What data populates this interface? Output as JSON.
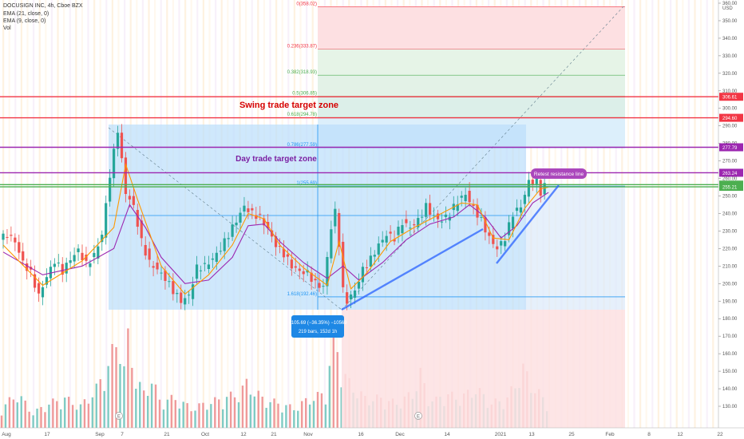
{
  "header": {
    "symbol_line": "DOCUSIGN INC, 4h, Cboe BZX",
    "ema21": "EMA (21, close, 0)",
    "ema9": "EMA (9, close, 0)",
    "vol": "Vol"
  },
  "colors": {
    "up": "#26a69a",
    "down": "#ef5350",
    "ema21": "#9c27b0",
    "ema9": "#ff9800",
    "fib_red": "#f23645",
    "fib_green": "#4caf50",
    "box_blue": "#2196f3",
    "trend_line": "#2962ff",
    "purple_line": "#9c27b0"
  },
  "chart_data": {
    "type": "candlestick",
    "title": "DOCUSIGN INC, 4h, Cboe BZX",
    "ylim": [
      125,
      360
    ],
    "y_ticks": [
      130,
      140,
      150,
      160,
      170,
      180,
      190,
      200,
      210,
      220,
      230,
      240,
      250,
      260,
      270,
      280,
      290,
      300,
      310,
      320,
      330,
      340,
      350,
      360
    ],
    "x_labels": [
      "Aug",
      "17",
      "Sep",
      "7",
      "21",
      "Oct",
      "12",
      "21",
      "Nov",
      "16",
      "Dec",
      "14",
      "2021",
      "13",
      "25",
      "Feb",
      "8",
      "12",
      "22"
    ],
    "currency": "USD",
    "price_path": [
      [
        0,
        225
      ],
      [
        2,
        228
      ],
      [
        4,
        224
      ],
      [
        6,
        212
      ],
      [
        8,
        206
      ],
      [
        10,
        193
      ],
      [
        12,
        204
      ],
      [
        14,
        213
      ],
      [
        16,
        207
      ],
      [
        18,
        214
      ],
      [
        20,
        219
      ],
      [
        22,
        211
      ],
      [
        24,
        216
      ],
      [
        26,
        228
      ],
      [
        28,
        262
      ],
      [
        30,
        288
      ],
      [
        32,
        252
      ],
      [
        34,
        244
      ],
      [
        36,
        224
      ],
      [
        38,
        212
      ],
      [
        40,
        208
      ],
      [
        42,
        203
      ],
      [
        44,
        196
      ],
      [
        46,
        190
      ],
      [
        48,
        193
      ],
      [
        50,
        209
      ],
      [
        52,
        210
      ],
      [
        54,
        214
      ],
      [
        56,
        220
      ],
      [
        58,
        228
      ],
      [
        60,
        236
      ],
      [
        62,
        244
      ],
      [
        64,
        240
      ],
      [
        66,
        238
      ],
      [
        68,
        231
      ],
      [
        70,
        222
      ],
      [
        72,
        217
      ],
      [
        74,
        210
      ],
      [
        76,
        207
      ],
      [
        78,
        206
      ],
      [
        80,
        200
      ],
      [
        82,
        198
      ],
      [
        84,
        232
      ],
      [
        85,
        241
      ],
      [
        86,
        223
      ],
      [
        87,
        196
      ],
      [
        88,
        190
      ],
      [
        90,
        196
      ],
      [
        92,
        208
      ],
      [
        94,
        214
      ],
      [
        96,
        222
      ],
      [
        98,
        228
      ],
      [
        100,
        226
      ],
      [
        102,
        235
      ],
      [
        104,
        232
      ],
      [
        106,
        236
      ],
      [
        108,
        244
      ],
      [
        110,
        238
      ],
      [
        112,
        236
      ],
      [
        114,
        240
      ],
      [
        116,
        247
      ],
      [
        118,
        251
      ],
      [
        120,
        243
      ],
      [
        122,
        236
      ],
      [
        124,
        226
      ],
      [
        126,
        220
      ],
      [
        128,
        226
      ],
      [
        130,
        240
      ],
      [
        132,
        244
      ],
      [
        134,
        258
      ],
      [
        136,
        258
      ],
      [
        137,
        252
      ],
      [
        138,
        256
      ]
    ],
    "ema21_path": [
      [
        0,
        218
      ],
      [
        10,
        205
      ],
      [
        20,
        210
      ],
      [
        28,
        220
      ],
      [
        32,
        245
      ],
      [
        36,
        232
      ],
      [
        40,
        215
      ],
      [
        46,
        200
      ],
      [
        52,
        202
      ],
      [
        58,
        215
      ],
      [
        62,
        233
      ],
      [
        66,
        234
      ],
      [
        70,
        224
      ],
      [
        76,
        212
      ],
      [
        82,
        203
      ],
      [
        86,
        210
      ],
      [
        90,
        202
      ],
      [
        96,
        212
      ],
      [
        102,
        225
      ],
      [
        108,
        234
      ],
      [
        114,
        238
      ],
      [
        118,
        245
      ],
      [
        122,
        238
      ],
      [
        126,
        226
      ],
      [
        130,
        233
      ],
      [
        134,
        246
      ],
      [
        138,
        252
      ]
    ],
    "ema9_path": [
      [
        0,
        222
      ],
      [
        10,
        199
      ],
      [
        20,
        213
      ],
      [
        28,
        232
      ],
      [
        31,
        268
      ],
      [
        34,
        248
      ],
      [
        40,
        210
      ],
      [
        46,
        194
      ],
      [
        52,
        205
      ],
      [
        58,
        222
      ],
      [
        62,
        240
      ],
      [
        66,
        237
      ],
      [
        70,
        222
      ],
      [
        76,
        209
      ],
      [
        82,
        199
      ],
      [
        85,
        224
      ],
      [
        88,
        197
      ],
      [
        92,
        206
      ],
      [
        98,
        224
      ],
      [
        104,
        232
      ],
      [
        110,
        239
      ],
      [
        116,
        246
      ],
      [
        120,
        245
      ],
      [
        124,
        226
      ],
      [
        128,
        225
      ],
      [
        132,
        243
      ],
      [
        136,
        254
      ],
      [
        138,
        255
      ]
    ],
    "volume": [
      [
        0,
        0.2
      ],
      [
        4,
        0.35
      ],
      [
        8,
        0.15
      ],
      [
        12,
        0.25
      ],
      [
        16,
        0.3
      ],
      [
        20,
        0.22
      ],
      [
        24,
        0.4
      ],
      [
        26,
        0.55
      ],
      [
        28,
        0.75
      ],
      [
        30,
        0.95
      ],
      [
        31,
        0.6
      ],
      [
        32,
        0.9
      ],
      [
        34,
        0.5
      ],
      [
        36,
        0.35
      ],
      [
        38,
        0.5
      ],
      [
        40,
        0.28
      ],
      [
        44,
        0.3
      ],
      [
        48,
        0.2
      ],
      [
        52,
        0.25
      ],
      [
        56,
        0.3
      ],
      [
        60,
        0.35
      ],
      [
        62,
        0.45
      ],
      [
        66,
        0.3
      ],
      [
        70,
        0.25
      ],
      [
        74,
        0.2
      ],
      [
        78,
        0.3
      ],
      [
        82,
        0.35
      ],
      [
        84,
        0.95
      ],
      [
        85,
        0.8
      ],
      [
        86,
        0.6
      ],
      [
        88,
        0.45
      ],
      [
        92,
        0.3
      ],
      [
        96,
        0.3
      ],
      [
        100,
        0.25
      ],
      [
        104,
        0.35
      ],
      [
        106,
        0.55
      ],
      [
        108,
        0.3
      ],
      [
        110,
        0.28
      ],
      [
        112,
        0.35
      ],
      [
        116,
        0.3
      ],
      [
        120,
        0.4
      ],
      [
        124,
        0.25
      ],
      [
        128,
        0.3
      ],
      [
        132,
        0.6
      ],
      [
        134,
        0.45
      ],
      [
        136,
        0.35
      ],
      [
        138,
        0.25
      ]
    ],
    "horizontal_lines": [
      {
        "value": 306.61,
        "color": "#f23645",
        "label": "306.61"
      },
      {
        "value": 294.6,
        "color": "#f23645",
        "label": "294.60"
      },
      {
        "value": 277.79,
        "color": "#9c27b0",
        "label": "277.79"
      },
      {
        "value": 263.24,
        "color": "#9c27b0",
        "label": "263.24"
      },
      {
        "value": 256.49,
        "color": "#4caf50",
        "label": "256.49"
      },
      {
        "value": 255.21,
        "color": "#4caf50",
        "label": "255.21"
      }
    ],
    "fib_levels": [
      {
        "text": "0(358.02)",
        "value": 358.02
      },
      {
        "text": "0.236(333.87)",
        "value": 333.87
      },
      {
        "text": "0.382(318.93)",
        "value": 318.93
      },
      {
        "text": "0.5(306.85)",
        "value": 306.85
      },
      {
        "text": "0.618(294.78)",
        "value": 294.78
      },
      {
        "text": "0.786(277.59)",
        "value": 277.59
      },
      {
        "text": "1(255.69)",
        "value": 255.69
      },
      {
        "text": "1.618(192.46)",
        "value": 192.46
      }
    ],
    "annotations": {
      "swing": "Swing trade target zone",
      "day": "Day trade target zone",
      "retest": "Retest resistance line",
      "measure_line1": "−105.69 (−36.35%) −10569",
      "measure_line2": "219 bars, 152d 1h"
    }
  }
}
